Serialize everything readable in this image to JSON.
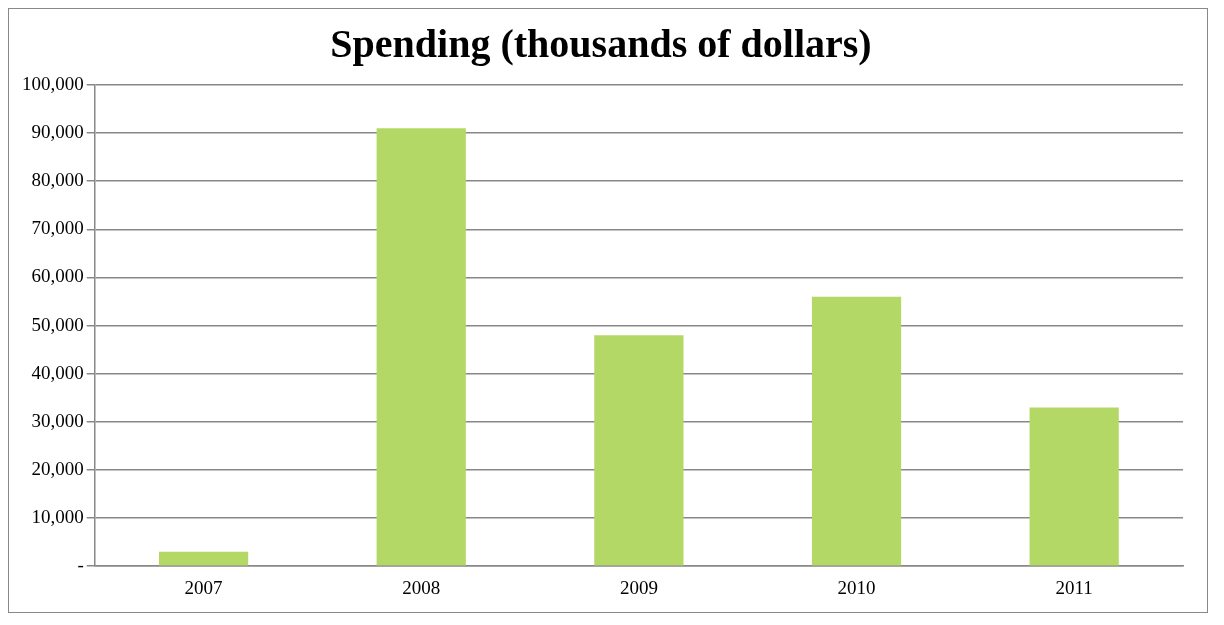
{
  "chart_data": {
    "type": "bar",
    "title": "Spending (thousands of dollars)",
    "categories": [
      "2007",
      "2008",
      "2009",
      "2010",
      "2011"
    ],
    "values": [
      3000,
      91000,
      48000,
      56000,
      33000
    ],
    "color": "#b4d865",
    "ylim": [
      0,
      100000
    ],
    "yticks": [
      {
        "value": 0,
        "label": "-"
      },
      {
        "value": 10000,
        "label": "10,000"
      },
      {
        "value": 20000,
        "label": "20,000"
      },
      {
        "value": 30000,
        "label": "30,000"
      },
      {
        "value": 40000,
        "label": "40,000"
      },
      {
        "value": 50000,
        "label": "50,000"
      },
      {
        "value": 60000,
        "label": "60,000"
      },
      {
        "value": 70000,
        "label": "70,000"
      },
      {
        "value": 80000,
        "label": "80,000"
      },
      {
        "value": 90000,
        "label": "90,000"
      },
      {
        "value": 100000,
        "label": "100,000"
      }
    ],
    "grid": "y",
    "legend": false
  }
}
